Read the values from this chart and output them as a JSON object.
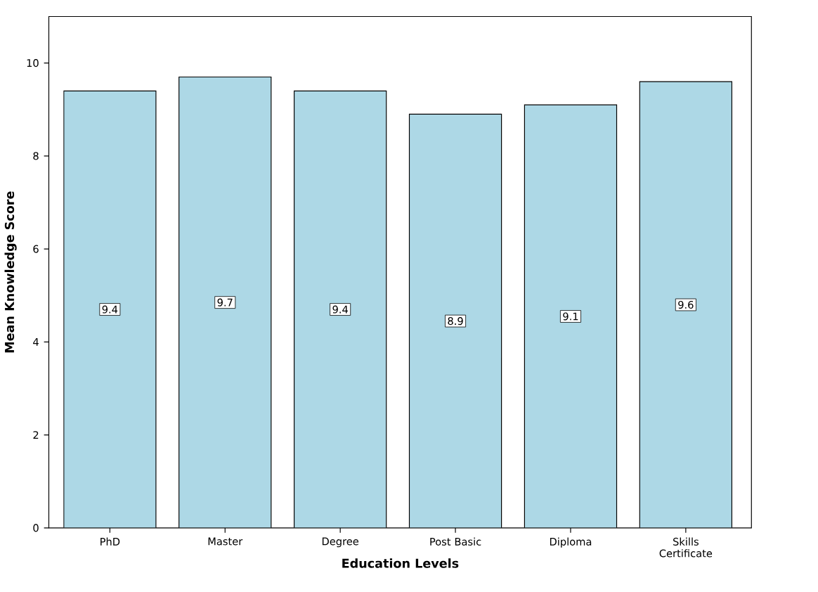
{
  "chart_data": {
    "type": "bar",
    "xlabel": "Education Levels",
    "ylabel": "Mean Knowledge Score",
    "categories": [
      "PhD",
      "Master",
      "Degree",
      "Post Basic",
      "Diploma",
      "Skills Certificate"
    ],
    "values": [
      9.4,
      9.7,
      9.4,
      8.9,
      9.1,
      9.6
    ],
    "color": "#add8e6",
    "ylim": [
      0,
      11
    ],
    "yticks": [
      0,
      2,
      4,
      6,
      8,
      10
    ],
    "data_labels": true
  }
}
